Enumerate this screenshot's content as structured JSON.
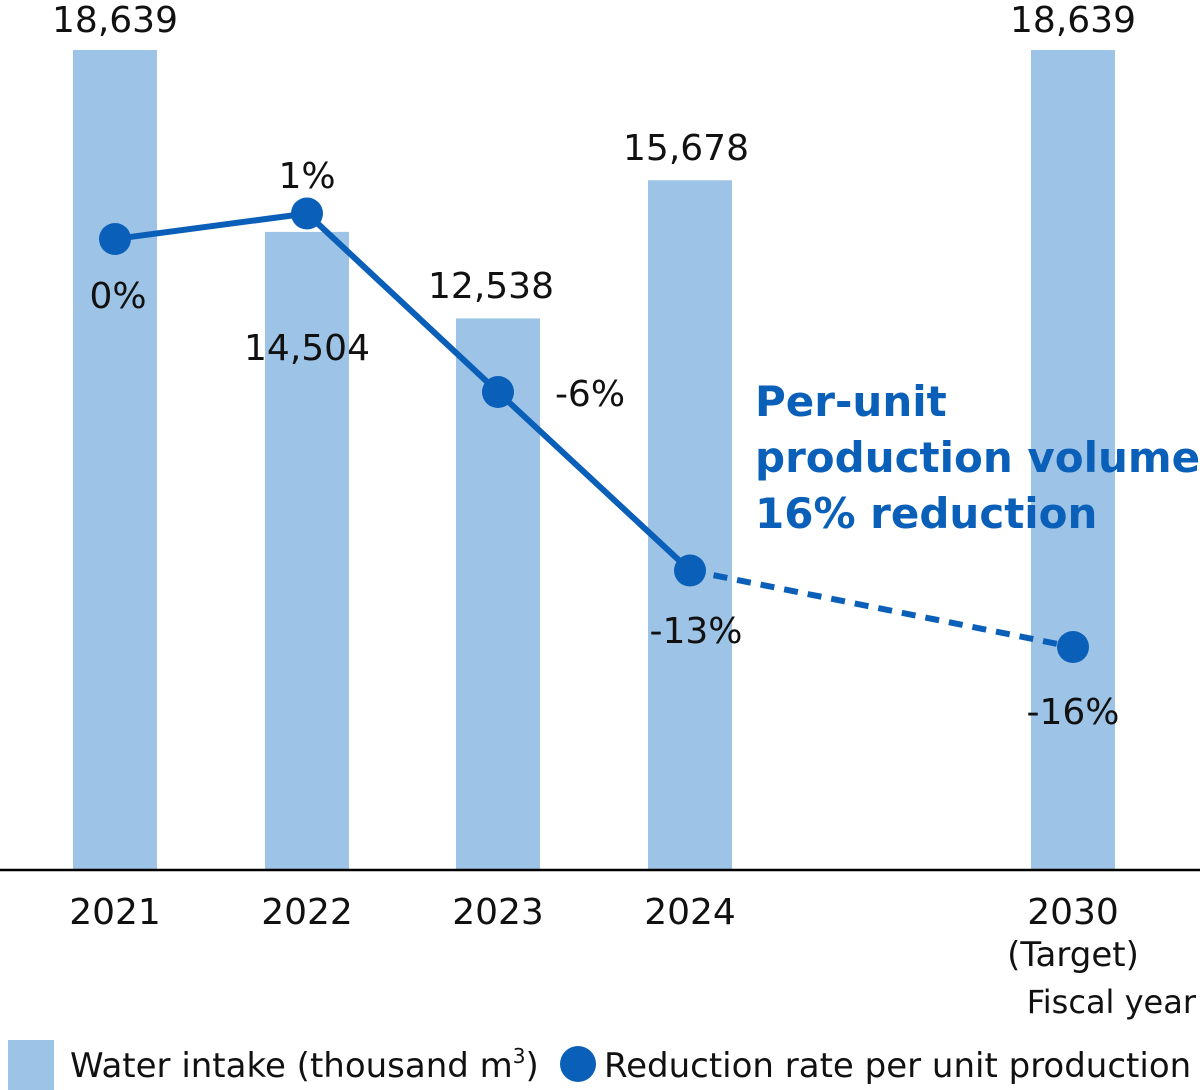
{
  "chart_data": {
    "type": "bar",
    "categories": [
      "2021",
      "2022",
      "2023",
      "2024",
      "2030"
    ],
    "category_sublabels": [
      "",
      "",
      "",
      "",
      "(Target)"
    ],
    "series": [
      {
        "name": "Water intake (thousand m",
        "name_sup": "3",
        "name_close": ")",
        "type": "bar",
        "values": [
          18639,
          14504,
          12538,
          15678,
          18639
        ],
        "value_labels": [
          "18,639",
          "14,504",
          "12,538",
          "15,678",
          "18,639"
        ],
        "color": "#9dc3e6"
      },
      {
        "name": "Reduction rate per unit production",
        "type": "line",
        "values": [
          0,
          1,
          -6,
          -13,
          -16
        ],
        "value_labels": [
          "0%",
          "1%",
          "-6%",
          "-13%",
          "-16%"
        ],
        "projected_from_index": 3,
        "color": "#0a5fb8"
      }
    ],
    "ylim": [
      0,
      18639
    ],
    "xlabel": "Fiscal year",
    "annotation": {
      "lines": [
        "Per-unit",
        "production volume",
        "16% reduction"
      ],
      "color": "#0a5fb8"
    },
    "legend_position": "bottom",
    "grid": false
  }
}
